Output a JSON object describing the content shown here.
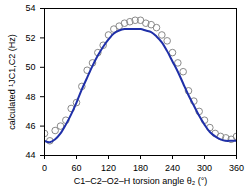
{
  "chart_data": {
    "type": "scatter",
    "xlabel": "C1–C2–O2–H torsion angle θ₂ (°)",
    "ylabel": "calculated ¹JC1,C2 (Hz)",
    "x": [
      0,
      10,
      20,
      30,
      40,
      50,
      60,
      70,
      80,
      90,
      100,
      110,
      120,
      130,
      140,
      150,
      160,
      170,
      180,
      190,
      200,
      210,
      220,
      230,
      240,
      250,
      260,
      270,
      280,
      290,
      300,
      310,
      320,
      330,
      340,
      350,
      360
    ],
    "series": [
      {
        "type": "scatter",
        "marker": "circle",
        "color": "#8a8a8a",
        "values": [
          45.5,
          45.0,
          45.7,
          46.0,
          46.4,
          47.2,
          47.6,
          48.7,
          49.8,
          50.3,
          51.0,
          51.5,
          52.2,
          52.6,
          52.8,
          53.0,
          53.1,
          53.2,
          53.2,
          53.0,
          52.9,
          52.7,
          52.2,
          51.8,
          51.0,
          50.3,
          49.7,
          48.4,
          47.7,
          47.0,
          46.4,
          45.9,
          45.5,
          45.3,
          45.2,
          45.1,
          45.3
        ]
      },
      {
        "type": "line",
        "line_style": "solid",
        "color": "#1f2fa8",
        "values": [
          45.0,
          44.9,
          45.1,
          45.5,
          46.1,
          46.8,
          47.6,
          48.5,
          49.3,
          50.1,
          50.8,
          51.4,
          51.9,
          52.3,
          52.5,
          52.6,
          52.6,
          52.6,
          52.6,
          52.5,
          52.4,
          52.1,
          51.7,
          51.1,
          50.4,
          49.7,
          48.9,
          48.1,
          47.4,
          46.7,
          46.1,
          45.6,
          45.3,
          45.1,
          45.0,
          45.0,
          45.0
        ]
      }
    ],
    "xlim": [
      0,
      360
    ],
    "xticks": [
      0,
      60,
      120,
      180,
      240,
      300,
      360
    ],
    "ylim": [
      44,
      54
    ],
    "yticks": [
      44,
      46,
      48,
      50,
      52,
      54
    ],
    "grid": false
  }
}
